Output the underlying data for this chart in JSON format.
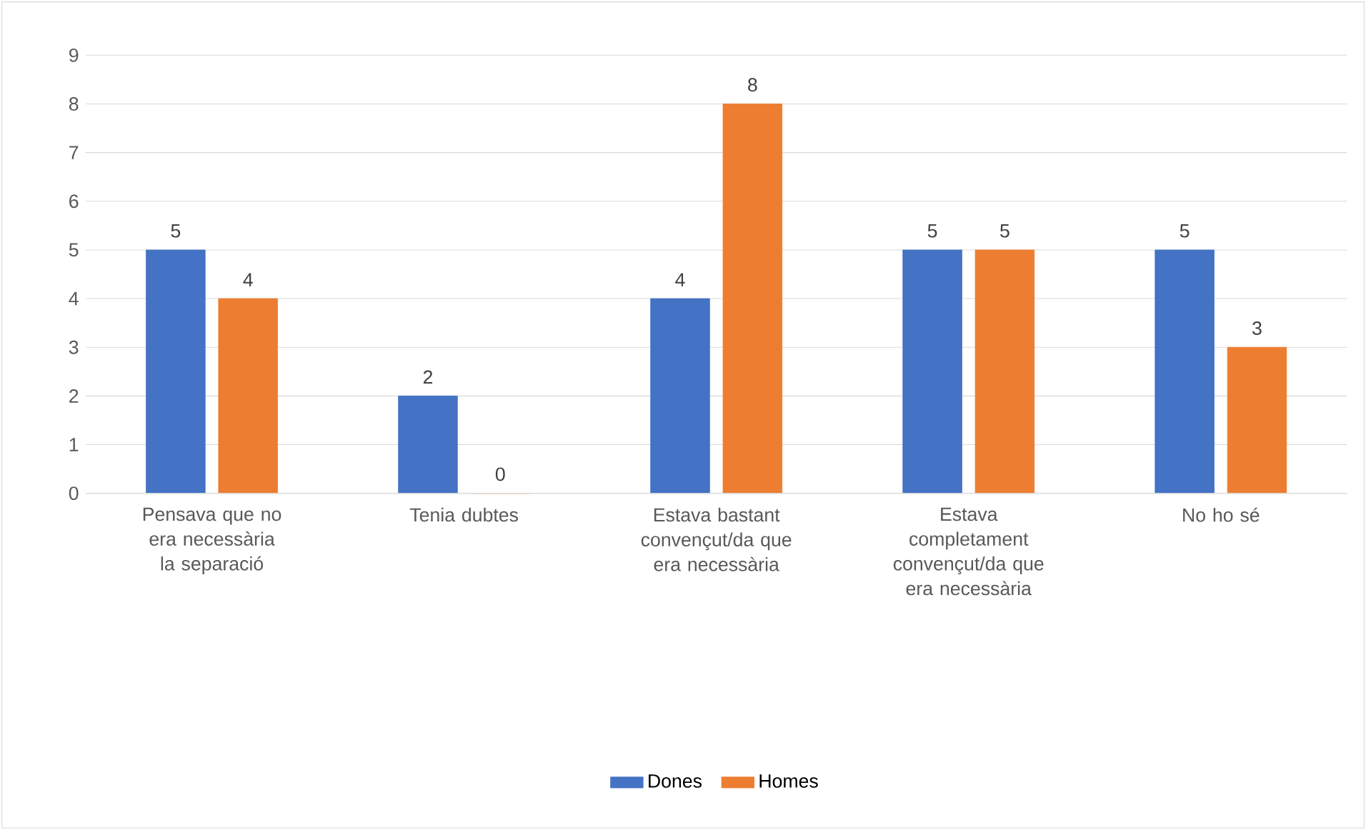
{
  "chart_data": {
    "type": "bar",
    "categories": [
      "Pensava que no era necessària la separació",
      "Tenia dubtes",
      "Estava bastant convençut/da que era necessària",
      "Estava completament convençut/da que era necessària",
      "No ho sé"
    ],
    "series": [
      {
        "name": "Dones",
        "color": "#4472c4",
        "values": [
          5,
          2,
          4,
          5,
          5
        ]
      },
      {
        "name": "Homes",
        "color": "#ed7d31",
        "values": [
          4,
          0,
          8,
          5,
          3
        ]
      }
    ],
    "ylim": [
      0,
      9
    ],
    "yticks": [
      0,
      1,
      2,
      3,
      4,
      5,
      6,
      7,
      8,
      9
    ],
    "grid": "y",
    "legend": "bottom",
    "data_labels": true
  }
}
